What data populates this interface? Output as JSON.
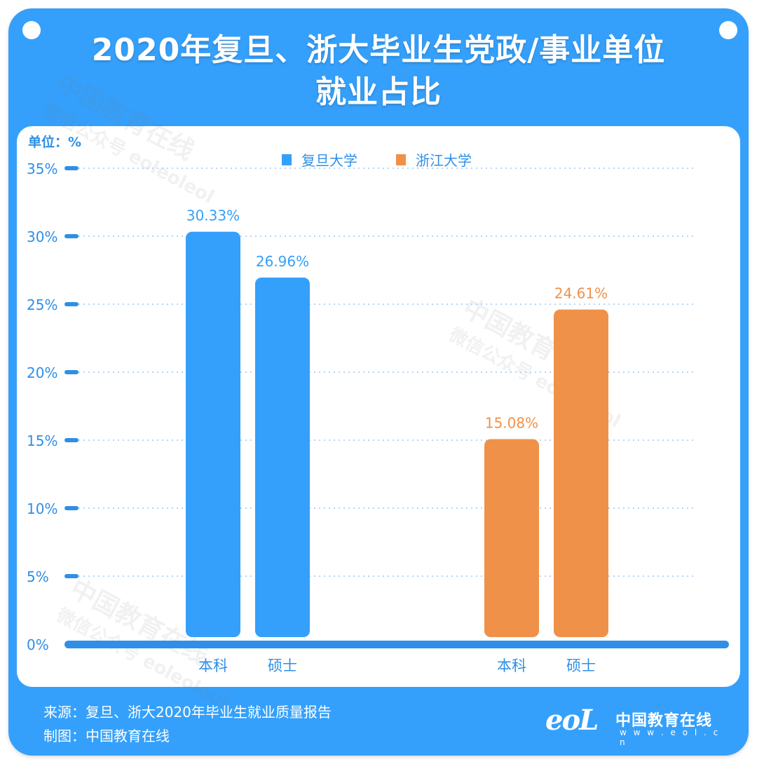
{
  "title_line1": "2020年复旦、浙大毕业生党政/事业单位",
  "title_line2": "就业占比",
  "unit_label": "单位：%",
  "footer": {
    "source": "来源：复旦、浙大2020年毕业生就业质量报告",
    "credit": "制图：中国教育在线"
  },
  "logo": {
    "mark": "eoL",
    "name": "中国教育在线",
    "url": "w w w . e o l . c n"
  },
  "watermark": {
    "line1": "中国教育在线",
    "line2": "微信公众号 eoleoleol"
  },
  "colors": {
    "fudan": "#35a0fb",
    "zju": "#f0914a",
    "frame": "#35a0fb",
    "axis_text": "#2f8fe6"
  },
  "chart_data": {
    "type": "bar",
    "ylim": [
      0,
      35
    ],
    "yticks": [
      "0%",
      "5%",
      "10%",
      "15%",
      "20%",
      "25%",
      "30%",
      "35%"
    ],
    "legend": [
      "复旦大学",
      "浙江大学"
    ],
    "legend_position": "top-center",
    "grid": true,
    "groups": [
      {
        "series": "复旦大学",
        "bars": [
          {
            "category": "本科",
            "value": 30.33,
            "label": "30.33%"
          },
          {
            "category": "硕士",
            "value": 26.96,
            "label": "26.96%"
          }
        ]
      },
      {
        "series": "浙江大学",
        "bars": [
          {
            "category": "本科",
            "value": 15.08,
            "label": "15.08%"
          },
          {
            "category": "硕士",
            "value": 24.61,
            "label": "24.61%"
          }
        ]
      }
    ]
  }
}
